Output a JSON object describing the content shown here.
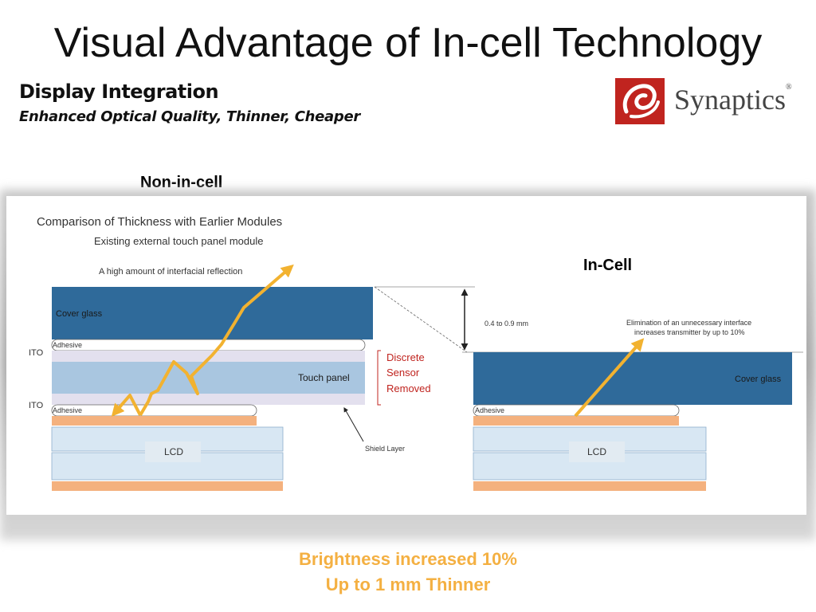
{
  "title": "Visual Advantage of In-cell Technology",
  "subtitle": {
    "heading": "Display Integration",
    "tagline": "Enhanced Optical Quality, Thinner, Cheaper"
  },
  "logo": {
    "text": "Synaptics",
    "registered": "®",
    "icon": "synaptics-logo-icon",
    "color": "#c0241f"
  },
  "labels": {
    "non_in_cell": "Non-in-cell",
    "in_cell": "In-Cell"
  },
  "diagram": {
    "title": "Comparison of Thickness with Earlier Modules",
    "subtitle": "Existing external touch panel module",
    "reflection_note": "A high amount of interfacial reflection",
    "cover_glass": "Cover glass",
    "adhesive": "Adhesive",
    "ito": "ITO",
    "touch_panel": "Touch panel",
    "lcd": "LCD",
    "shield_layer": "Shield Layer",
    "thickness": "0.4 to 0.9 mm",
    "discrete_sensor": [
      "Discrete",
      "Sensor",
      "Removed"
    ],
    "elimination_note": [
      "Elimination of an unnecessary interface",
      "increases transmitter by up to 10%"
    ],
    "colors": {
      "cover_glass": "#2f6a9a",
      "touch_panel": "#a9c6e0",
      "lcd": "#d8e7f3",
      "orange_layer": "#f4b17e",
      "arrow": "#f2b230",
      "removed_text": "#c0241f"
    }
  },
  "footer": {
    "line1": "Brightness increased 10%",
    "line2": "Up to 1 mm Thinner",
    "color": "#f4b042"
  }
}
